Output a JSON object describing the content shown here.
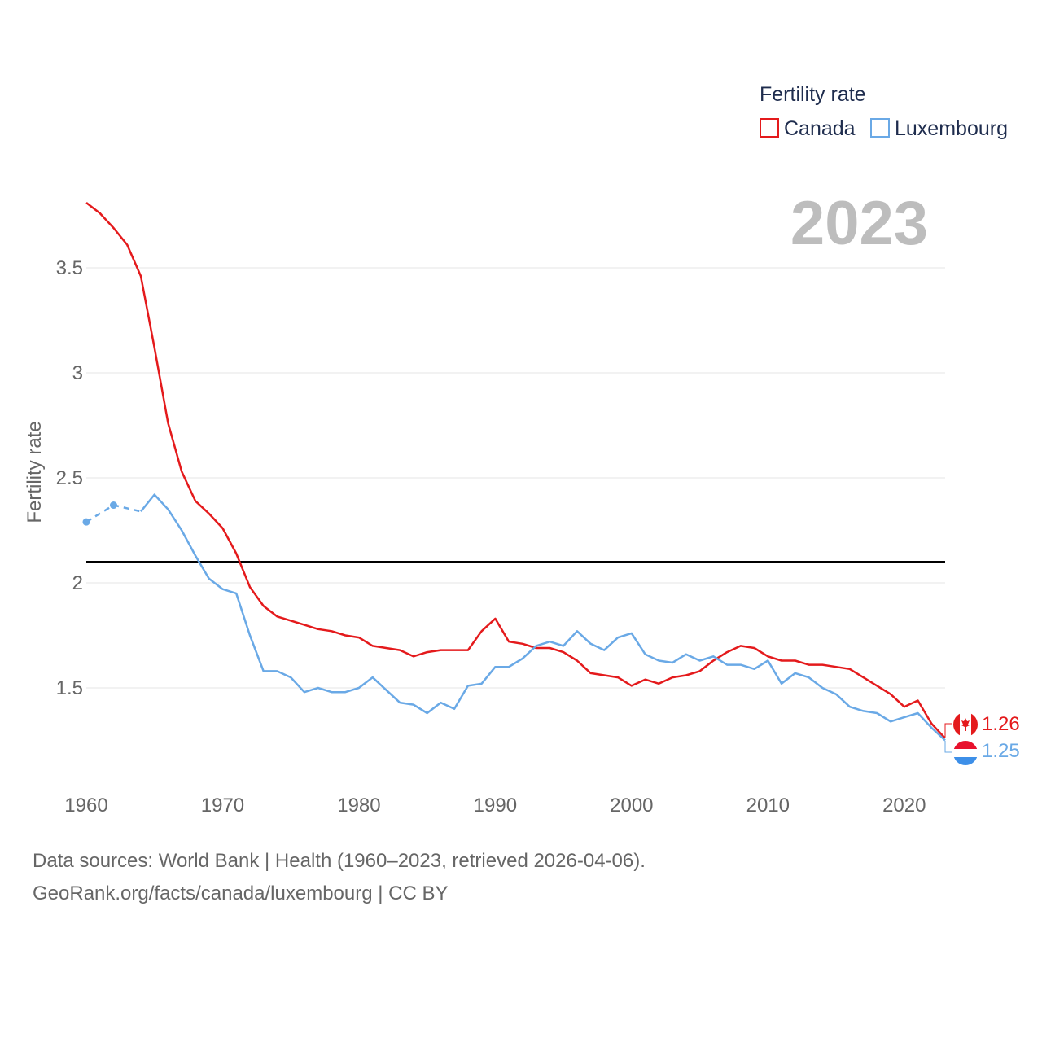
{
  "chart_data": {
    "type": "line",
    "title": "",
    "ylabel": "Fertility rate",
    "xlabel": "",
    "year_label": "2023",
    "legend": {
      "title": "Fertility rate",
      "placement": "top-right"
    },
    "xlim": [
      1960,
      2023
    ],
    "ylim": [
      1.1,
      3.85
    ],
    "x_ticks": [
      1960,
      1970,
      1980,
      1990,
      2000,
      2010,
      2020
    ],
    "y_ticks": [
      1.5,
      2,
      2.5,
      3,
      3.5
    ],
    "y_tick_labels": [
      "1.5",
      "2",
      "2.5",
      "3",
      "3.5"
    ],
    "reference_line": {
      "y": 2.1,
      "color": "#000000"
    },
    "x": [
      1960,
      1961,
      1962,
      1963,
      1964,
      1965,
      1966,
      1967,
      1968,
      1969,
      1970,
      1971,
      1972,
      1973,
      1974,
      1975,
      1976,
      1977,
      1978,
      1979,
      1980,
      1981,
      1982,
      1983,
      1984,
      1985,
      1986,
      1987,
      1988,
      1989,
      1990,
      1991,
      1992,
      1993,
      1994,
      1995,
      1996,
      1997,
      1998,
      1999,
      2000,
      2001,
      2002,
      2003,
      2004,
      2005,
      2006,
      2007,
      2008,
      2009,
      2010,
      2011,
      2012,
      2013,
      2014,
      2015,
      2016,
      2017,
      2018,
      2019,
      2020,
      2021,
      2022,
      2023
    ],
    "series": [
      {
        "name": "Canada",
        "color": "#e41a1c",
        "end_label": "1.26",
        "values": [
          3.81,
          3.76,
          3.69,
          3.61,
          3.46,
          3.12,
          2.76,
          2.53,
          2.39,
          2.33,
          2.26,
          2.14,
          1.98,
          1.89,
          1.84,
          1.82,
          1.8,
          1.78,
          1.77,
          1.75,
          1.74,
          1.7,
          1.69,
          1.68,
          1.65,
          1.67,
          1.68,
          1.68,
          1.68,
          1.77,
          1.83,
          1.72,
          1.71,
          1.69,
          1.69,
          1.67,
          1.63,
          1.57,
          1.56,
          1.55,
          1.51,
          1.54,
          1.52,
          1.55,
          1.56,
          1.58,
          1.63,
          1.67,
          1.7,
          1.69,
          1.65,
          1.63,
          1.63,
          1.61,
          1.61,
          1.6,
          1.59,
          1.55,
          1.51,
          1.47,
          1.41,
          1.44,
          1.33,
          1.26
        ]
      },
      {
        "name": "Luxembourg",
        "color": "#6aa9e6",
        "end_label": "1.25",
        "dashed_until": 1964,
        "values": [
          2.29,
          null,
          2.37,
          null,
          2.34,
          2.42,
          2.35,
          2.25,
          2.13,
          2.02,
          1.97,
          1.95,
          1.75,
          1.58,
          1.58,
          1.55,
          1.48,
          1.5,
          1.48,
          1.48,
          1.5,
          1.55,
          1.49,
          1.43,
          1.42,
          1.38,
          1.43,
          1.4,
          1.51,
          1.52,
          1.6,
          1.6,
          1.64,
          1.7,
          1.72,
          1.7,
          1.77,
          1.71,
          1.68,
          1.74,
          1.76,
          1.66,
          1.63,
          1.62,
          1.66,
          1.63,
          1.65,
          1.61,
          1.61,
          1.59,
          1.63,
          1.52,
          1.57,
          1.55,
          1.5,
          1.47,
          1.41,
          1.39,
          1.38,
          1.34,
          1.36,
          1.38,
          1.31,
          1.25
        ]
      }
    ]
  },
  "source": {
    "line1": "Data sources: World Bank | Health (1960–2023, retrieved 2026-04-06).",
    "line2": "GeoRank.org/facts/canada/luxembourg | CC BY"
  }
}
